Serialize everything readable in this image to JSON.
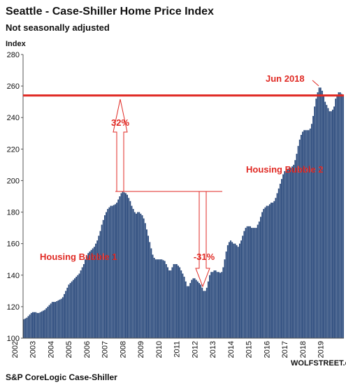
{
  "chart_data": {
    "type": "bar",
    "title": "Seattle - Case-Shiller Home Price Index",
    "subtitle": "Not seasonally adjusted",
    "y_label": "Index",
    "source": "S&P CoreLogic Case-Shiller",
    "credit": "WOLFSTREET.com",
    "annotations": [
      "Jun 2018",
      "32%",
      "-31%",
      "Housing Bubble 1",
      "Housing Bubble 2"
    ],
    "reference_line": {
      "value": 254,
      "color": "#e02a24"
    },
    "color": "#27477a",
    "ylim": [
      100,
      280
    ],
    "yticks": [
      100,
      120,
      140,
      160,
      180,
      200,
      220,
      240,
      260,
      280
    ],
    "grid": false,
    "categories": [
      "2002",
      null,
      null,
      null,
      null,
      null,
      null,
      null,
      null,
      null,
      null,
      null,
      "2003",
      null,
      null,
      null,
      null,
      null,
      null,
      null,
      null,
      null,
      null,
      null,
      "2004",
      null,
      null,
      null,
      null,
      null,
      null,
      null,
      null,
      null,
      null,
      null,
      "2005",
      null,
      null,
      null,
      null,
      null,
      null,
      null,
      null,
      null,
      null,
      null,
      "2006",
      null,
      null,
      null,
      null,
      null,
      null,
      null,
      null,
      null,
      null,
      null,
      "2007",
      null,
      null,
      null,
      null,
      null,
      null,
      null,
      null,
      null,
      null,
      null,
      "2008",
      null,
      null,
      null,
      null,
      null,
      null,
      null,
      null,
      null,
      null,
      null,
      "2009",
      null,
      null,
      null,
      null,
      null,
      null,
      null,
      null,
      null,
      null,
      null,
      "2010",
      null,
      null,
      null,
      null,
      null,
      null,
      null,
      null,
      null,
      null,
      null,
      "2011",
      null,
      null,
      null,
      null,
      null,
      null,
      null,
      null,
      null,
      null,
      null,
      "2012",
      null,
      null,
      null,
      null,
      null,
      null,
      null,
      null,
      null,
      null,
      null,
      "2013",
      null,
      null,
      null,
      null,
      null,
      null,
      null,
      null,
      null,
      null,
      null,
      "2014",
      null,
      null,
      null,
      null,
      null,
      null,
      null,
      null,
      null,
      null,
      null,
      "2015",
      null,
      null,
      null,
      null,
      null,
      null,
      null,
      null,
      null,
      null,
      null,
      "2016",
      null,
      null,
      null,
      null,
      null,
      null,
      null,
      null,
      null,
      null,
      null,
      "2017",
      null,
      null,
      null,
      null,
      null,
      null,
      null,
      null,
      null,
      null,
      null,
      "2018",
      null,
      null,
      null,
      null,
      null,
      null,
      null,
      null,
      null,
      null,
      null,
      "2019",
      null,
      null,
      null,
      null,
      null,
      null,
      null,
      null,
      null
    ],
    "values": [
      112,
      112.5,
      113,
      114,
      115,
      116,
      116.5,
      116.5,
      116.5,
      116,
      116,
      116.5,
      117,
      117.5,
      118,
      119,
      120,
      121,
      122,
      123,
      123,
      123,
      123.5,
      124,
      124.5,
      125,
      126,
      128,
      130,
      132,
      134,
      135,
      136,
      137,
      138,
      139,
      140,
      141,
      143,
      145,
      147,
      150,
      152,
      154,
      155,
      156,
      157,
      158,
      160,
      162,
      165,
      168,
      172,
      175,
      178,
      180,
      182,
      183,
      184,
      184,
      184.5,
      185,
      186,
      188,
      190,
      192,
      193,
      192.5,
      192,
      191,
      189,
      187,
      184,
      182,
      180,
      179,
      180,
      180,
      179,
      178,
      176,
      173,
      169,
      165,
      161,
      157,
      153,
      151,
      150,
      150,
      150,
      150,
      150,
      149.5,
      149,
      147,
      145,
      143,
      143,
      145,
      147,
      147,
      147,
      146,
      145,
      143,
      141,
      139,
      136,
      133,
      133,
      135,
      137,
      138,
      138,
      137,
      136,
      135,
      134,
      132,
      130,
      130,
      132,
      136,
      140,
      142,
      142,
      143,
      143,
      142,
      142,
      141.5,
      142,
      145,
      150,
      155,
      159,
      161,
      162,
      161,
      160,
      160,
      159,
      158,
      160,
      162,
      165,
      168,
      170,
      171,
      171,
      171,
      170,
      170,
      170,
      170,
      172,
      174,
      177,
      180,
      182,
      183,
      184,
      184,
      185,
      186,
      186,
      187,
      189,
      192,
      195,
      198,
      201,
      204,
      206,
      206,
      207,
      208,
      208,
      209,
      210,
      213,
      217,
      222,
      226,
      229,
      231,
      232,
      232,
      232,
      232,
      233,
      236,
      241,
      247,
      252,
      256,
      259,
      259,
      257,
      254,
      250,
      248,
      246,
      244,
      244,
      245,
      247,
      252,
      254,
      256,
      256,
      255,
      254
    ]
  }
}
